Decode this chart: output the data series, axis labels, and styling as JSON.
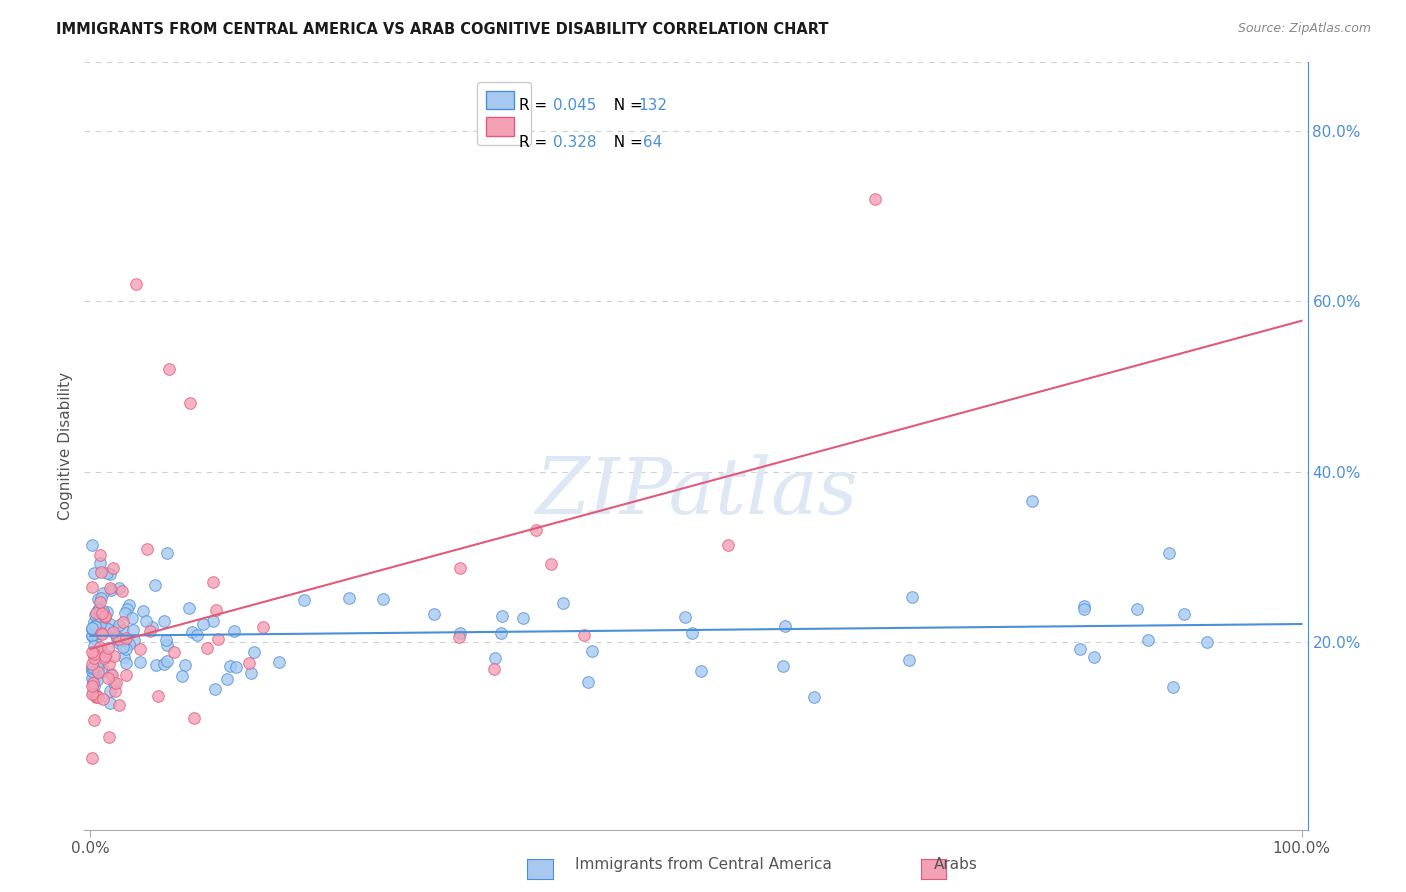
{
  "title": "IMMIGRANTS FROM CENTRAL AMERICA VS ARAB COGNITIVE DISABILITY CORRELATION CHART",
  "source": "Source: ZipAtlas.com",
  "ylabel": "Cognitive Disability",
  "color_blue": "#a8c8f0",
  "color_pink": "#f4a0b5",
  "line_color_blue": "#4a90d9",
  "line_color_pink": "#e05a7a",
  "right_axis_color": "#4a90d9",
  "bg_color": "#ffffff",
  "grid_color": "#d0d0d0",
  "watermark_color": "#e8eef5",
  "title_color": "#1a1a1a",
  "source_color": "#888888",
  "ylabel_color": "#555555",
  "xtick_color": "#555555",
  "legend_text_color": "#4a90d9",
  "bottom_label_color": "#555555"
}
